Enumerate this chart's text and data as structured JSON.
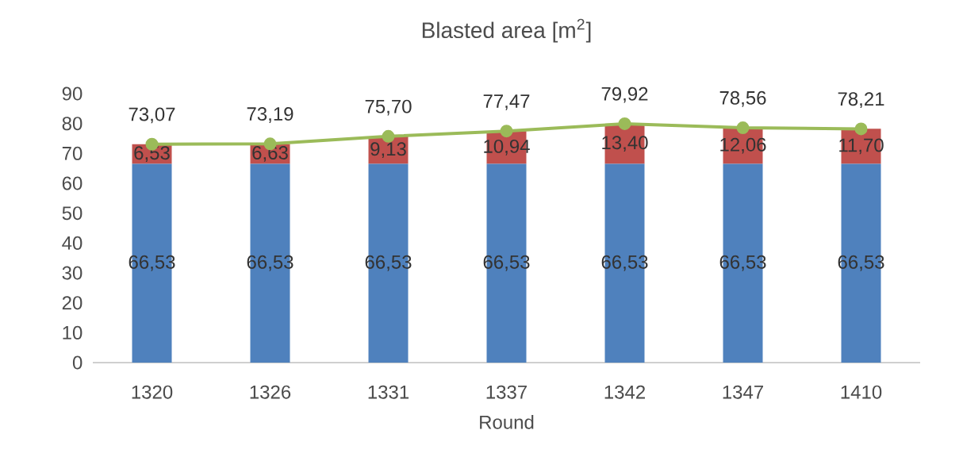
{
  "chart_data": {
    "type": "bar",
    "title": "Blasted area [m$^{2}$]",
    "xlabel": "Round",
    "categories": [
      "1320",
      "1326",
      "1331",
      "1337",
      "1342",
      "1347",
      "1410"
    ],
    "stacked": true,
    "ylim": [
      0,
      90
    ],
    "yticks": [
      0,
      10,
      20,
      30,
      40,
      50,
      60,
      70,
      80,
      90
    ],
    "marker": "circle",
    "series": [
      {
        "color": "#4f81bd",
        "values": [
          66.53,
          66.53,
          66.53,
          66.53,
          66.53,
          66.53,
          66.53
        ],
        "value_labels": [
          "66,53",
          "66,53",
          "66,53",
          "66,53",
          "66,53",
          "66,53",
          "66,53"
        ]
      },
      {
        "color": "#c0504d",
        "values": [
          6.53,
          6.63,
          9.13,
          10.94,
          13.4,
          12.06,
          11.7
        ],
        "value_labels": [
          "6,53",
          "6,63",
          "9,13",
          "10,94",
          "13,40",
          "12,06",
          "11,70"
        ]
      },
      {
        "type": "line",
        "color": "#9bbb59",
        "values": [
          73.07,
          73.19,
          75.7,
          77.47,
          79.92,
          78.56,
          78.21
        ],
        "value_labels": [
          "73,07",
          "73,19",
          "75,70",
          "77,47",
          "79,92",
          "78,56",
          "78,21"
        ]
      }
    ]
  }
}
